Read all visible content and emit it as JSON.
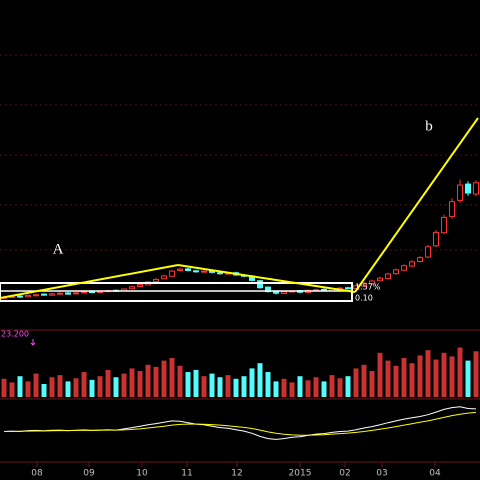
{
  "chart_data": [
    {
      "type": "candlestick",
      "x": [
        1,
        3,
        5,
        7,
        9,
        11,
        13,
        15,
        17,
        19,
        21,
        23,
        25,
        27,
        29,
        31,
        33,
        35,
        37,
        39,
        41,
        43,
        45,
        47,
        49,
        51,
        53,
        55,
        57,
        59,
        61,
        63,
        65,
        67,
        69,
        71,
        73,
        75,
        77,
        79,
        81,
        83,
        85,
        87,
        89,
        91,
        93,
        95,
        97,
        99,
        101,
        103,
        105,
        107,
        109,
        111,
        113,
        115,
        117,
        119
      ],
      "open": [
        10.0,
        10.3,
        10.6,
        10.4,
        10.7,
        11.2,
        10.9,
        11.2,
        11.6,
        11.3,
        11.6,
        12.0,
        11.7,
        12.0,
        12.4,
        12.2,
        12.9,
        13.6,
        14.1,
        15.1,
        16.0,
        16.8,
        18.6,
        19.1,
        18.5,
        18.1,
        18.5,
        17.9,
        17.5,
        17.9,
        17.1,
        16.9,
        15.4,
        13.4,
        12.1,
        11.4,
        12.0,
        12.3,
        11.7,
        12.3,
        12.7,
        12.2,
        12.8,
        13.2,
        13.0,
        13.7,
        14.5,
        15.4,
        16.1,
        17.6,
        18.7,
        20.0,
        21.4,
        22.8,
        26.3,
        30.4,
        35.5,
        40.5,
        45.6,
        42.5
      ],
      "high": [
        10.5,
        10.8,
        10.9,
        11.1,
        11.3,
        11.5,
        11.6,
        11.8,
        11.9,
        11.9,
        12.2,
        12.3,
        12.3,
        12.6,
        12.7,
        13.1,
        13.8,
        14.5,
        15.3,
        16.2,
        17.3,
        18.8,
        19.5,
        19.4,
        18.8,
        18.7,
        18.8,
        18.2,
        18.1,
        18.2,
        17.4,
        17.1,
        15.6,
        13.6,
        12.3,
        12.2,
        12.5,
        12.5,
        12.7,
        12.9,
        13.0,
        13.2,
        13.4,
        13.5,
        14.1,
        14.9,
        15.7,
        16.6,
        17.9,
        19.2,
        20.5,
        21.8,
        23.1,
        26.6,
        31.2,
        36.0,
        41.2,
        47.0,
        46.5,
        46.8
      ],
      "low": [
        9.7,
        10.0,
        10.0,
        10.2,
        10.5,
        10.7,
        10.7,
        11.0,
        11.0,
        11.1,
        11.4,
        11.5,
        11.5,
        11.8,
        11.9,
        12.0,
        12.7,
        13.4,
        13.9,
        14.9,
        15.8,
        16.6,
        18.3,
        18.3,
        17.9,
        17.9,
        17.7,
        17.3,
        17.3,
        16.9,
        16.5,
        15.2,
        12.9,
        11.7,
        11.1,
        11.2,
        11.8,
        11.5,
        11.5,
        12.1,
        12.0,
        12.0,
        12.6,
        12.7,
        12.8,
        13.5,
        14.3,
        15.1,
        15.9,
        17.3,
        18.4,
        19.7,
        21.1,
        22.5,
        25.9,
        30.0,
        34.8,
        39.8,
        41.9,
        41.8
      ],
      "close": [
        10.2,
        10.5,
        10.3,
        10.8,
        11.0,
        10.9,
        11.3,
        11.5,
        11.2,
        11.6,
        11.9,
        11.7,
        12.0,
        12.3,
        12.1,
        12.8,
        13.5,
        14.2,
        15.0,
        15.8,
        16.9,
        18.4,
        19.0,
        18.6,
        18.2,
        18.4,
        18.0,
        17.6,
        17.8,
        17.2,
        16.8,
        15.5,
        13.2,
        12.0,
        11.5,
        11.9,
        12.2,
        11.8,
        12.4,
        12.6,
        12.3,
        12.9,
        13.1,
        13.0,
        13.8,
        14.6,
        15.3,
        16.2,
        17.5,
        18.8,
        20.1,
        21.3,
        22.6,
        26.0,
        30.5,
        35.2,
        40.1,
        45.3,
        42.8,
        46.0
      ],
      "up_color": "#ff3232",
      "down_color": "#54fcfc",
      "xlim": [
        0,
        120
      ],
      "ylim": [
        0,
        100
      ],
      "xticks": [
        {
          "value": 9.25,
          "label": "08"
        },
        {
          "value": 22.25,
          "label": "09"
        },
        {
          "value": 35.5,
          "label": "10"
        },
        {
          "value": 46.75,
          "label": "11"
        },
        {
          "value": 59.25,
          "label": "12"
        },
        {
          "value": 75,
          "label": "2015"
        },
        {
          "value": 86.25,
          "label": "02"
        },
        {
          "value": 95.5,
          "label": "03"
        },
        {
          "value": 108.75,
          "label": "04"
        }
      ],
      "annotations": [
        "A",
        "b",
        "1.57%",
        "0.10"
      ]
    },
    {
      "type": "volume",
      "label": "23.200",
      "values": [
        35,
        28,
        40,
        30,
        45,
        25,
        38,
        42,
        30,
        36,
        48,
        33,
        40,
        52,
        38,
        45,
        55,
        50,
        62,
        58,
        70,
        75,
        60,
        48,
        52,
        40,
        45,
        38,
        42,
        35,
        40,
        55,
        65,
        48,
        30,
        35,
        28,
        40,
        32,
        38,
        30,
        42,
        36,
        40,
        55,
        62,
        50,
        85,
        70,
        60,
        75,
        65,
        80,
        90,
        72,
        85,
        78,
        95,
        70,
        88
      ],
      "ylim": [
        0,
        100
      ]
    },
    {
      "type": "macd",
      "ylim": [
        -1.5,
        1.5
      ],
      "series": [
        {
          "color": "#ffffff",
          "values": [
            0.0,
            0.02,
            0.0,
            0.05,
            0.06,
            0.04,
            0.07,
            0.08,
            0.05,
            0.07,
            0.09,
            0.06,
            0.08,
            0.1,
            0.08,
            0.15,
            0.22,
            0.3,
            0.38,
            0.45,
            0.52,
            0.6,
            0.58,
            0.5,
            0.42,
            0.38,
            0.3,
            0.22,
            0.18,
            0.1,
            0.02,
            -0.1,
            -0.28,
            -0.4,
            -0.45,
            -0.4,
            -0.32,
            -0.3,
            -0.22,
            -0.15,
            -0.12,
            -0.05,
            0.0,
            0.02,
            0.1,
            0.2,
            0.28,
            0.38,
            0.5,
            0.6,
            0.7,
            0.78,
            0.85,
            0.95,
            1.1,
            1.25,
            1.35,
            1.4,
            1.3,
            1.28
          ]
        },
        {
          "color": "#ffff00",
          "values": [
            0.0,
            0.0,
            0.01,
            0.02,
            0.03,
            0.03,
            0.04,
            0.05,
            0.05,
            0.06,
            0.06,
            0.06,
            0.07,
            0.08,
            0.08,
            0.09,
            0.12,
            0.15,
            0.2,
            0.25,
            0.3,
            0.36,
            0.4,
            0.42,
            0.42,
            0.41,
            0.39,
            0.36,
            0.33,
            0.28,
            0.23,
            0.17,
            0.08,
            -0.02,
            -0.1,
            -0.16,
            -0.19,
            -0.21,
            -0.21,
            -0.2,
            -0.18,
            -0.15,
            -0.12,
            -0.09,
            -0.05,
            0.0,
            0.06,
            0.13,
            0.2,
            0.28,
            0.36,
            0.44,
            0.52,
            0.6,
            0.7,
            0.8,
            0.9,
            0.98,
            1.04,
            1.08
          ]
        }
      ]
    }
  ]
}
